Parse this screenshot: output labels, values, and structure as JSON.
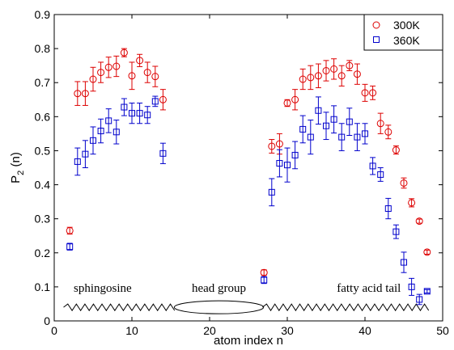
{
  "chart_data": {
    "type": "scatter",
    "xlabel": "atom index n",
    "ylabel_main": "P",
    "ylabel_sub": "2",
    "ylabel_tail": " (n)",
    "xlim": [
      0,
      50
    ],
    "ylim": [
      0,
      0.9
    ],
    "xticks": [
      0,
      10,
      20,
      30,
      40,
      50
    ],
    "yticks": [
      0,
      0.1,
      0.2,
      0.3,
      0.4,
      0.5,
      0.6,
      0.7,
      0.8,
      0.9
    ],
    "ytick_labels": [
      "0",
      "0.1",
      "0.2",
      "0.3",
      "0.4",
      "0.5",
      "0.6",
      "0.7",
      "0.8",
      "0.9"
    ],
    "legend_position": "top-right",
    "series": [
      {
        "name": "300K",
        "color": "#dd0000",
        "marker": "circle",
        "points": [
          {
            "x": 2,
            "y": 0.265,
            "err": 0.01
          },
          {
            "x": 3,
            "y": 0.668,
            "err": 0.035
          },
          {
            "x": 4,
            "y": 0.668,
            "err": 0.035
          },
          {
            "x": 5,
            "y": 0.71,
            "err": 0.035
          },
          {
            "x": 6,
            "y": 0.73,
            "err": 0.03
          },
          {
            "x": 7,
            "y": 0.745,
            "err": 0.03
          },
          {
            "x": 8,
            "y": 0.748,
            "err": 0.03
          },
          {
            "x": 9,
            "y": 0.788,
            "err": 0.012
          },
          {
            "x": 10,
            "y": 0.72,
            "err": 0.04
          },
          {
            "x": 11,
            "y": 0.765,
            "err": 0.018
          },
          {
            "x": 12,
            "y": 0.73,
            "err": 0.03
          },
          {
            "x": 13,
            "y": 0.718,
            "err": 0.03
          },
          {
            "x": 14,
            "y": 0.65,
            "err": 0.03
          },
          {
            "x": 27,
            "y": 0.142,
            "err": 0.008
          },
          {
            "x": 28,
            "y": 0.513,
            "err": 0.02
          },
          {
            "x": 29,
            "y": 0.52,
            "err": 0.03
          },
          {
            "x": 30,
            "y": 0.64,
            "err": 0.01
          },
          {
            "x": 31,
            "y": 0.65,
            "err": 0.03
          },
          {
            "x": 32,
            "y": 0.71,
            "err": 0.03
          },
          {
            "x": 33,
            "y": 0.715,
            "err": 0.035
          },
          {
            "x": 34,
            "y": 0.72,
            "err": 0.035
          },
          {
            "x": 35,
            "y": 0.735,
            "err": 0.03
          },
          {
            "x": 36,
            "y": 0.74,
            "err": 0.03
          },
          {
            "x": 37,
            "y": 0.72,
            "err": 0.03
          },
          {
            "x": 38,
            "y": 0.75,
            "err": 0.015
          },
          {
            "x": 39,
            "y": 0.725,
            "err": 0.03
          },
          {
            "x": 40,
            "y": 0.67,
            "err": 0.025
          },
          {
            "x": 41,
            "y": 0.67,
            "err": 0.02
          },
          {
            "x": 42,
            "y": 0.58,
            "err": 0.03
          },
          {
            "x": 43,
            "y": 0.555,
            "err": 0.02
          },
          {
            "x": 44,
            "y": 0.502,
            "err": 0.012
          },
          {
            "x": 45,
            "y": 0.405,
            "err": 0.015
          },
          {
            "x": 46,
            "y": 0.347,
            "err": 0.012
          },
          {
            "x": 47,
            "y": 0.293,
            "err": 0.006
          },
          {
            "x": 48,
            "y": 0.202,
            "err": 0.006
          }
        ]
      },
      {
        "name": "360K",
        "color": "#0000cc",
        "marker": "square",
        "points": [
          {
            "x": 2,
            "y": 0.218,
            "err": 0.01
          },
          {
            "x": 3,
            "y": 0.468,
            "err": 0.04
          },
          {
            "x": 4,
            "y": 0.49,
            "err": 0.04
          },
          {
            "x": 5,
            "y": 0.53,
            "err": 0.04
          },
          {
            "x": 6,
            "y": 0.558,
            "err": 0.035
          },
          {
            "x": 7,
            "y": 0.588,
            "err": 0.035
          },
          {
            "x": 8,
            "y": 0.555,
            "err": 0.035
          },
          {
            "x": 9,
            "y": 0.628,
            "err": 0.025
          },
          {
            "x": 10,
            "y": 0.61,
            "err": 0.03
          },
          {
            "x": 11,
            "y": 0.61,
            "err": 0.03
          },
          {
            "x": 12,
            "y": 0.605,
            "err": 0.025
          },
          {
            "x": 13,
            "y": 0.645,
            "err": 0.015
          },
          {
            "x": 14,
            "y": 0.492,
            "err": 0.03
          },
          {
            "x": 27,
            "y": 0.12,
            "err": 0.01
          },
          {
            "x": 28,
            "y": 0.378,
            "err": 0.04
          },
          {
            "x": 29,
            "y": 0.463,
            "err": 0.04
          },
          {
            "x": 30,
            "y": 0.458,
            "err": 0.05
          },
          {
            "x": 31,
            "y": 0.487,
            "err": 0.04
          },
          {
            "x": 32,
            "y": 0.563,
            "err": 0.04
          },
          {
            "x": 33,
            "y": 0.54,
            "err": 0.05
          },
          {
            "x": 34,
            "y": 0.618,
            "err": 0.04
          },
          {
            "x": 35,
            "y": 0.573,
            "err": 0.04
          },
          {
            "x": 36,
            "y": 0.592,
            "err": 0.04
          },
          {
            "x": 37,
            "y": 0.54,
            "err": 0.04
          },
          {
            "x": 38,
            "y": 0.585,
            "err": 0.04
          },
          {
            "x": 39,
            "y": 0.54,
            "err": 0.04
          },
          {
            "x": 40,
            "y": 0.55,
            "err": 0.03
          },
          {
            "x": 41,
            "y": 0.455,
            "err": 0.025
          },
          {
            "x": 42,
            "y": 0.43,
            "err": 0.02
          },
          {
            "x": 43,
            "y": 0.33,
            "err": 0.03
          },
          {
            "x": 44,
            "y": 0.262,
            "err": 0.02
          },
          {
            "x": 45,
            "y": 0.172,
            "err": 0.03
          },
          {
            "x": 46,
            "y": 0.1,
            "err": 0.025
          },
          {
            "x": 47,
            "y": 0.063,
            "err": 0.015
          },
          {
            "x": 48,
            "y": 0.087,
            "err": 0.005
          }
        ]
      }
    ],
    "annotations": [
      {
        "key": "sphingosine",
        "text": "sphingosine"
      },
      {
        "key": "head",
        "text": "head group"
      },
      {
        "key": "fatty",
        "text": "fatty acid tail"
      }
    ]
  }
}
